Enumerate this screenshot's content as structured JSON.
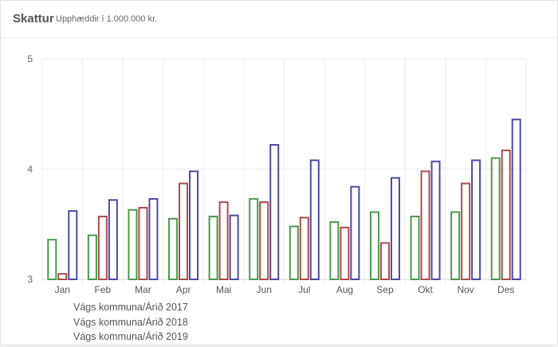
{
  "header": {
    "title": "Skattur",
    "subtitle": "Upphæddir í 1.000.000 kr."
  },
  "chart_data": {
    "type": "bar",
    "title": "Skattur",
    "subtitle": "Upphæddir í 1.000.000 kr.",
    "categories": [
      "Jan",
      "Feb",
      "Mar",
      "Apr",
      "Mai",
      "Jun",
      "Jul",
      "Aug",
      "Sep",
      "Okt",
      "Nov",
      "Des"
    ],
    "ylim": [
      3,
      5
    ],
    "yticks": [
      3,
      4,
      5
    ],
    "grid": true,
    "legend_position": "bottom-left",
    "series": [
      {
        "name": "Vágs kommuna/Árið 2017",
        "color": "#4b9a4b",
        "values": [
          3.36,
          3.4,
          3.63,
          3.55,
          3.57,
          3.73,
          3.48,
          3.52,
          3.61,
          3.57,
          3.61,
          4.1
        ]
      },
      {
        "name": "Vágs kommuna/Árið 2018",
        "color": "#b04a4a",
        "values": [
          3.05,
          3.57,
          3.65,
          3.87,
          3.7,
          3.7,
          3.56,
          3.47,
          3.33,
          3.98,
          3.87,
          4.17
        ]
      },
      {
        "name": "Vágs kommuna/Árið 2019",
        "color": "#4a4aa8",
        "values": [
          3.62,
          3.72,
          3.73,
          3.98,
          3.58,
          4.22,
          4.08,
          3.84,
          3.92,
          4.07,
          4.08,
          4.45
        ]
      }
    ]
  }
}
